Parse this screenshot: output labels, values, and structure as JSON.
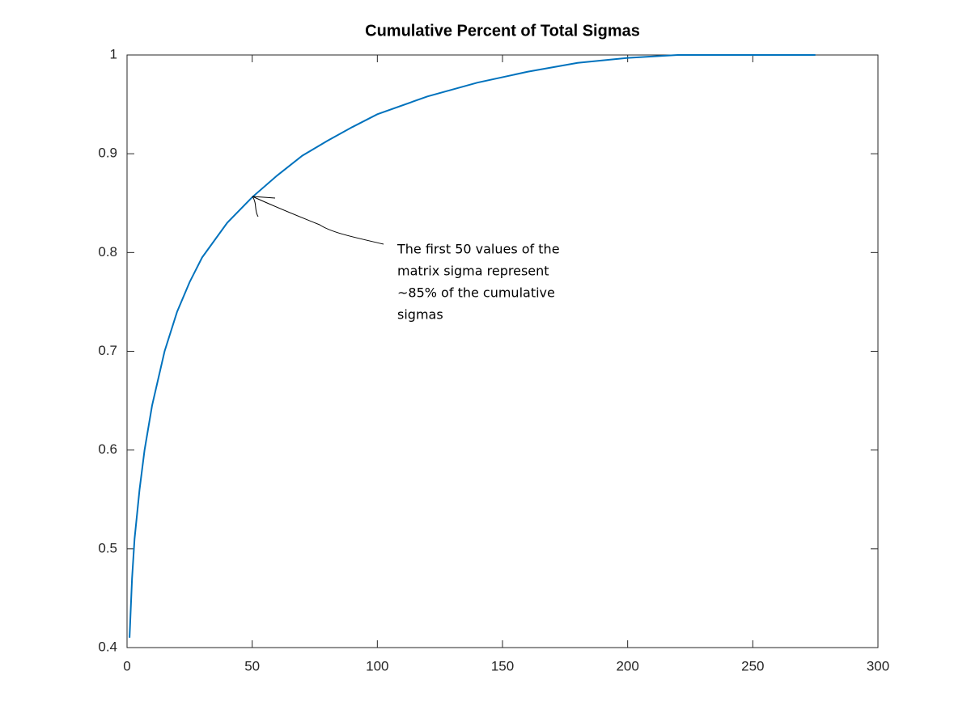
{
  "chart_data": {
    "type": "line",
    "title": "Cumulative Percent of Total Sigmas",
    "x": [
      1,
      2,
      3,
      5,
      7,
      10,
      15,
      20,
      25,
      30,
      40,
      50,
      60,
      70,
      80,
      90,
      100,
      120,
      140,
      160,
      180,
      200,
      220,
      250,
      275
    ],
    "values": [
      0.41,
      0.47,
      0.51,
      0.56,
      0.6,
      0.645,
      0.7,
      0.74,
      0.77,
      0.795,
      0.83,
      0.856,
      0.878,
      0.898,
      0.913,
      0.927,
      0.94,
      0.958,
      0.972,
      0.983,
      0.992,
      0.997,
      1,
      1,
      1
    ],
    "color": "#0072bd",
    "xlim": [
      0,
      300
    ],
    "ylim": [
      0.4,
      1
    ],
    "xticks": [
      0,
      50,
      100,
      150,
      200,
      250,
      300
    ],
    "yticks": [
      0.4,
      0.5,
      0.6,
      0.7,
      0.8,
      0.9,
      1
    ],
    "grid": false,
    "annotation": [
      "The first 50 values of the",
      "matrix sigma represent",
      "~85% of the cumulative",
      "sigmas"
    ]
  }
}
